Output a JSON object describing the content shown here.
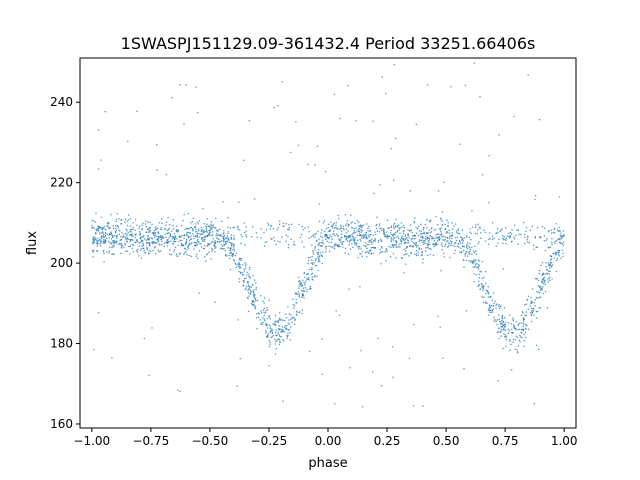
{
  "chart_data": {
    "type": "scatter",
    "title": "1SWASPJ151129.09-361432.4 Period 33251.66406s",
    "xlabel": "phase",
    "ylabel": "flux",
    "xlim": [
      -1.05,
      1.05
    ],
    "ylim": [
      159,
      251
    ],
    "x_ticks": [
      -1.0,
      -0.75,
      -0.5,
      -0.25,
      0.0,
      0.25,
      0.5,
      0.75,
      1.0
    ],
    "x_tick_labels": [
      "−1.00",
      "−0.75",
      "−0.50",
      "−0.25",
      "0.00",
      "0.25",
      "0.50",
      "0.75",
      "1.00"
    ],
    "y_ticks": [
      160,
      180,
      200,
      220,
      240
    ],
    "y_tick_labels": [
      "160",
      "180",
      "200",
      "220",
      "240"
    ],
    "grid": false,
    "legend": "none",
    "marker_color": "#1f77b4",
    "series": [
      {
        "description_points": "phase-folded light curve, same curve repeated for phase -1..0 and 0..1",
        "x": [
          -1.0,
          -0.9,
          -0.8,
          -0.7,
          -0.6,
          -0.5,
          -0.45,
          -0.4,
          -0.35,
          -0.3,
          -0.25,
          -0.2,
          -0.15,
          -0.1,
          -0.05,
          0.0,
          0.1,
          0.2,
          0.3,
          0.4,
          0.5,
          0.55,
          0.6,
          0.65,
          0.7,
          0.75,
          0.8,
          0.85,
          0.9,
          0.95,
          1.0
        ],
        "y": [
          207,
          207,
          206,
          206,
          206,
          207,
          206,
          203,
          196,
          189,
          184,
          182,
          187,
          194,
          201,
          207,
          207,
          206,
          206,
          206,
          207,
          206,
          203,
          196,
          189,
          184,
          182,
          187,
          194,
          201,
          207
        ]
      }
    ]
  }
}
